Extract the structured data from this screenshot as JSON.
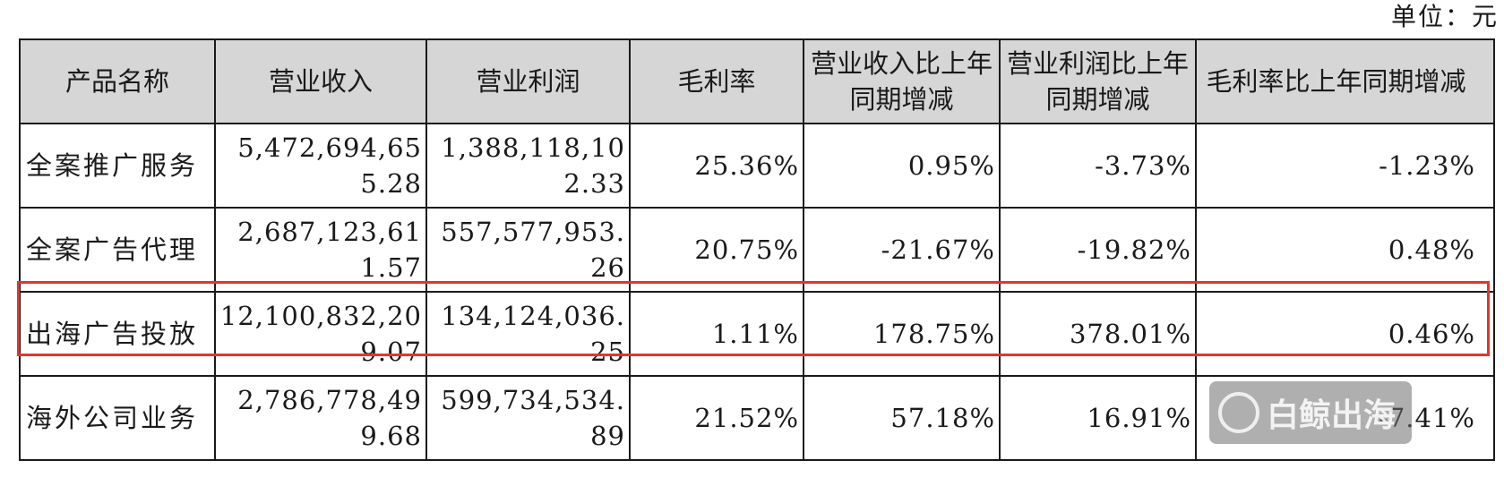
{
  "unit_label": "单位：元",
  "table": {
    "headers": [
      "产品名称",
      "营业收入",
      "营业利润",
      "毛利率",
      "营业收入比上年同期增减",
      "营业利润比上年同期增减",
      "毛利率比上年同期增减"
    ],
    "rows": [
      [
        "全案推广服务",
        "5,472,694,655.28",
        "1,388,118,102.33",
        "25.36%",
        "0.95%",
        "-3.73%",
        "-1.23%"
      ],
      [
        "全案广告代理",
        "2,687,123,611.57",
        "557,577,953.26",
        "20.75%",
        "-21.67%",
        "-19.82%",
        "0.48%"
      ],
      [
        "出海广告投放",
        "12,100,832,209.07",
        "134,124,036.25",
        "1.11%",
        "178.75%",
        "378.01%",
        "0.46%"
      ],
      [
        "海外公司业务",
        "2,786,778,499.68",
        "599,734,534.89",
        "21.52%",
        "57.18%",
        "16.91%",
        "-7.41%"
      ]
    ]
  },
  "highlight": {
    "row_index": 2,
    "color": "#e8342b"
  },
  "watermark": {
    "text": "白鲸出海",
    "icon": "whale-logo-icon"
  }
}
